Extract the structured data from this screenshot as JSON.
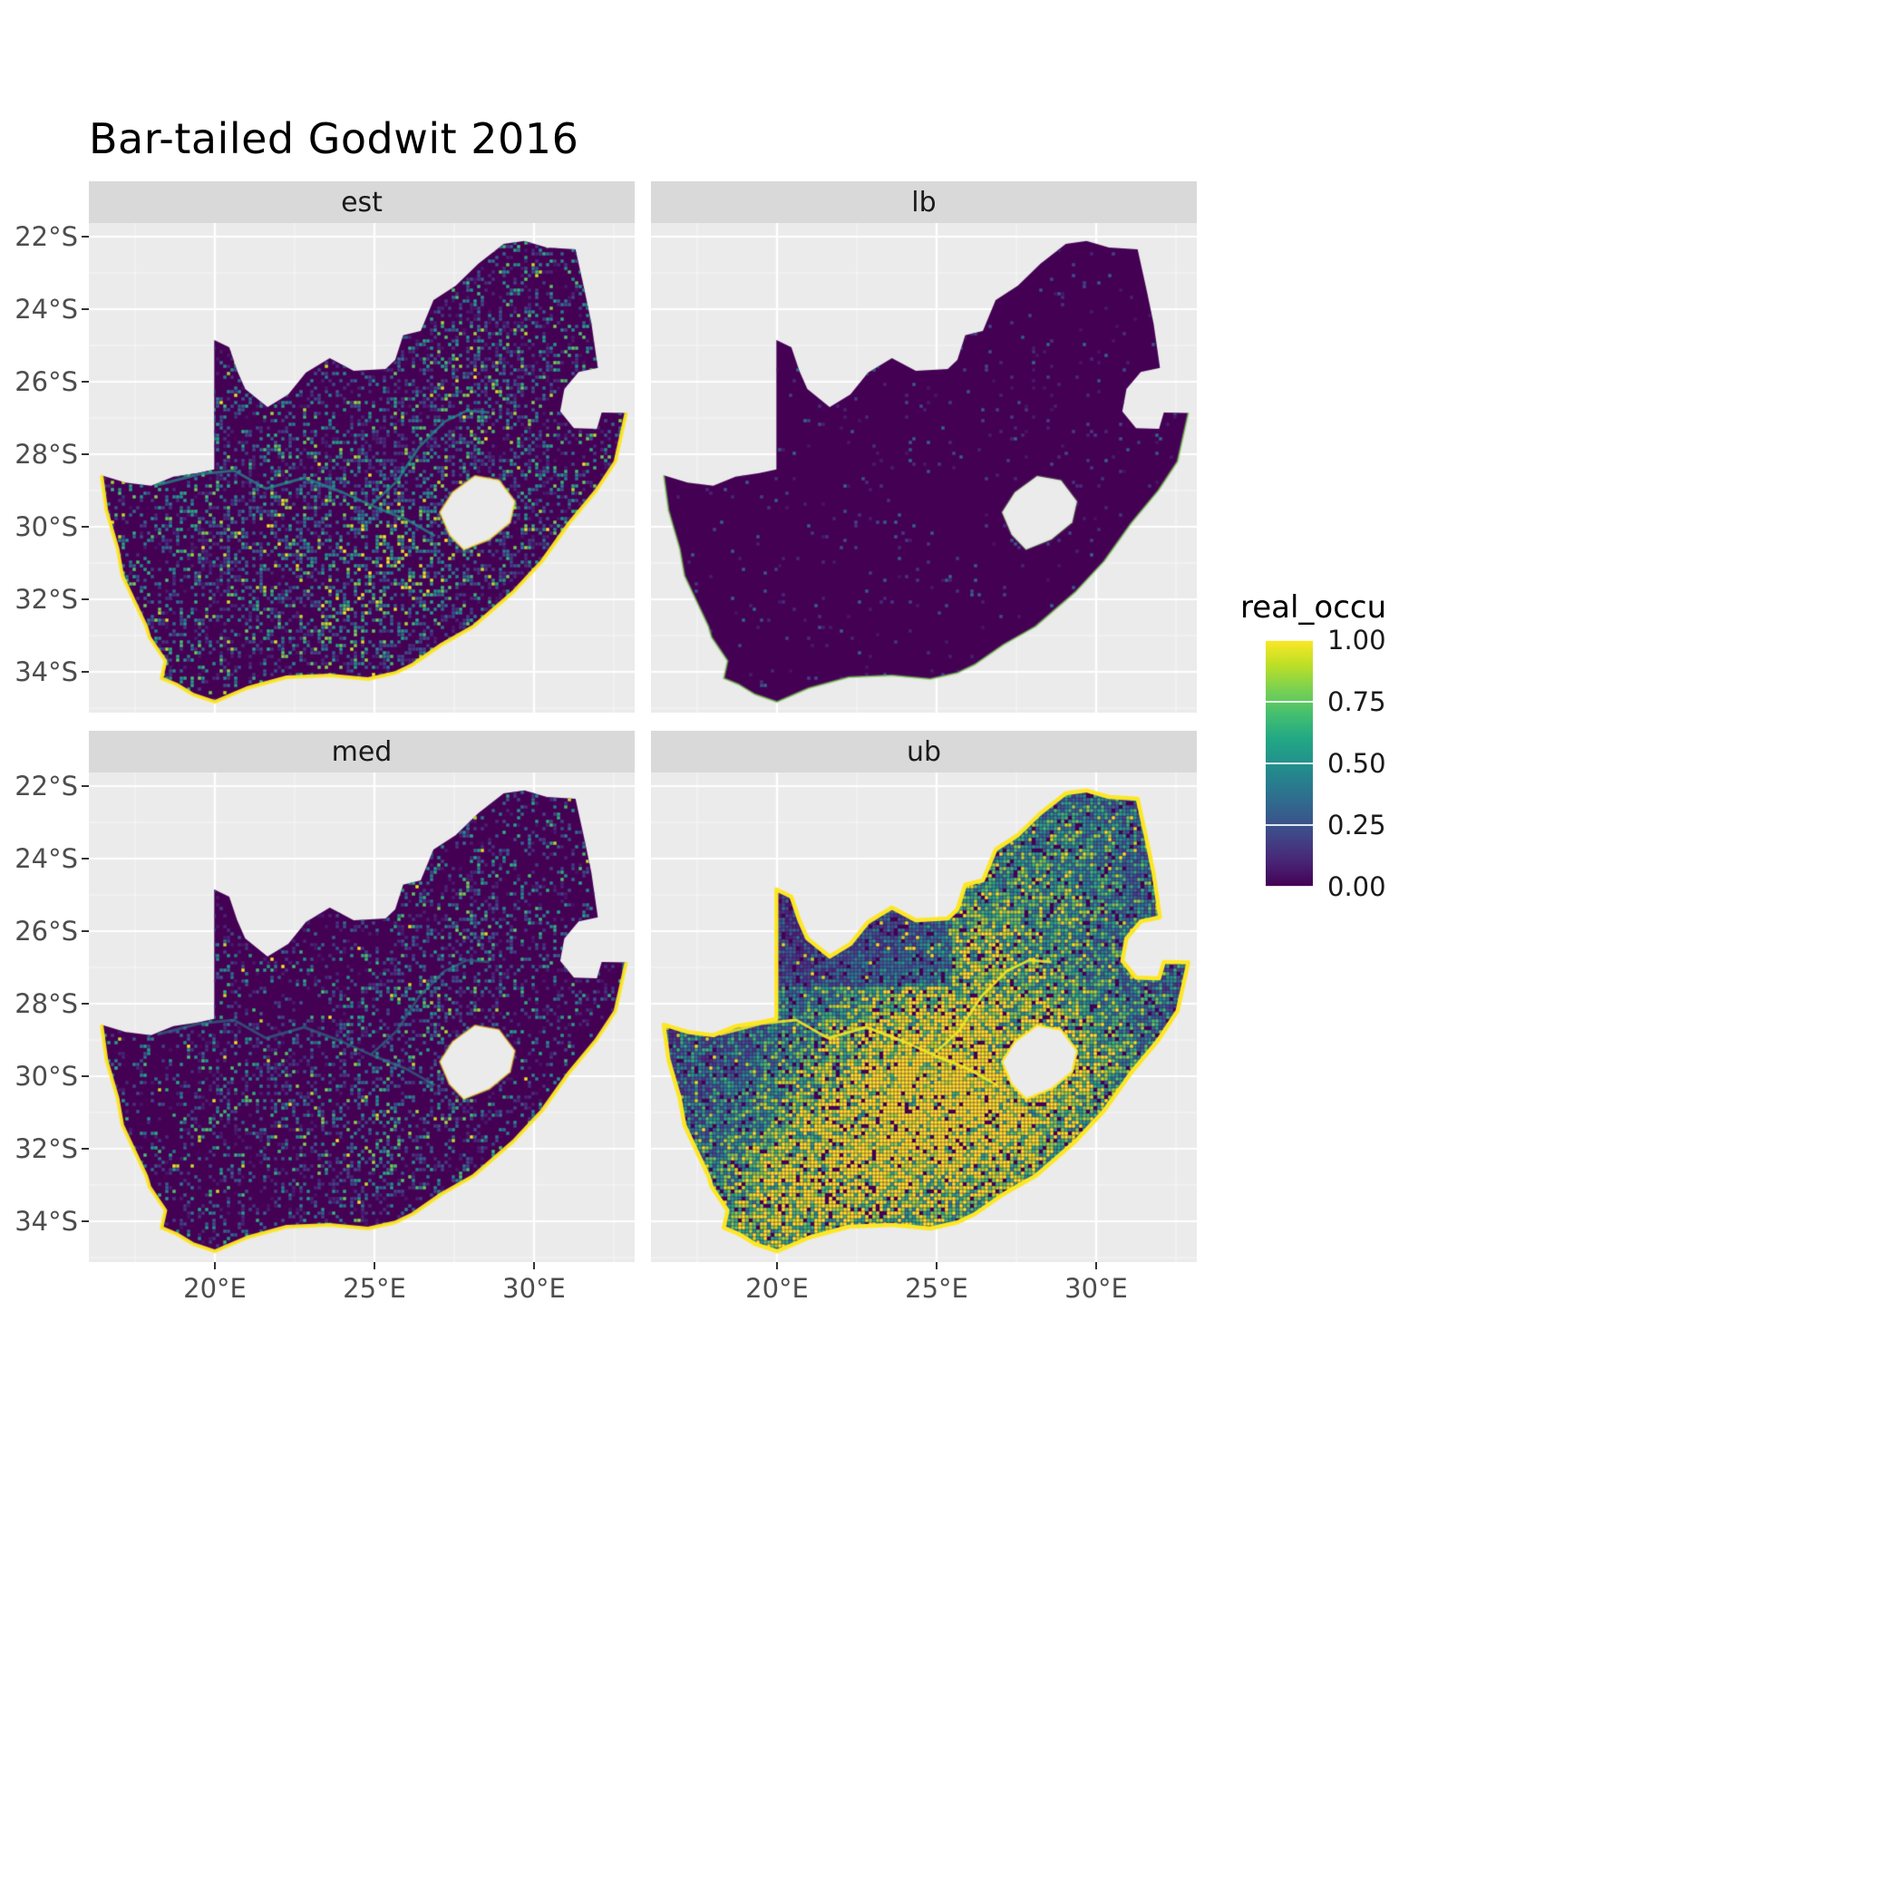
{
  "theme": {
    "panel_bg": "#EBEBEB",
    "strip_bg": "#D9D9D9",
    "grid_color": "#FFFFFF",
    "axis_text_color": "#4D4D4D",
    "tick_mark_color": "#333333",
    "title_color": "#000000",
    "strip_text_color": "#1A1A1A"
  },
  "chart_data": {
    "type": "heatmap",
    "title": "Bar-tailed Godwit 2016",
    "region": "South Africa",
    "legend_title": "real_occu",
    "legend_tick_labels": [
      "1.00",
      "0.75",
      "0.50",
      "0.25",
      "0.00"
    ],
    "legend_tick_values": [
      1.0,
      0.75,
      0.5,
      0.25,
      0.0
    ],
    "value_range": [
      0,
      1
    ],
    "colormap": {
      "name": "viridis",
      "stops": [
        "#440154",
        "#482475",
        "#414487",
        "#355F8D",
        "#2A788E",
        "#21918C",
        "#22A884",
        "#44BF70",
        "#7AD151",
        "#BDDF26",
        "#FDE725"
      ]
    },
    "x_axis": {
      "ticks": [
        {
          "lon": 20,
          "label": "20°E"
        },
        {
          "lon": 25,
          "label": "25°E"
        },
        {
          "lon": 30,
          "label": "30°E"
        }
      ],
      "minor": [
        17.5,
        22.5,
        27.5,
        32.5
      ],
      "range": [
        16.05,
        33.15
      ]
    },
    "y_axis": {
      "ticks": [
        {
          "lat": -22,
          "label": "22°S"
        },
        {
          "lat": -24,
          "label": "24°S"
        },
        {
          "lat": -26,
          "label": "26°S"
        },
        {
          "lat": -28,
          "label": "28°S"
        },
        {
          "lat": -30,
          "label": "30°S"
        },
        {
          "lat": -32,
          "label": "32°S"
        },
        {
          "lat": -34,
          "label": "34°S"
        }
      ],
      "minor": [
        -23,
        -25,
        -27,
        -29,
        -31,
        -33,
        -35
      ],
      "range": [
        -35.1,
        -21.63
      ]
    },
    "facets": [
      {
        "label": "est",
        "seed": 101,
        "density": 0.42,
        "pow": 2.4,
        "scale": 0.8,
        "base": 0,
        "bright": 0.012,
        "blobs": [
          [
            25.9,
            -30.6,
            2.6,
            0.28
          ],
          [
            28.1,
            -26.1,
            1.7,
            0.22
          ],
          [
            21.3,
            -30.4,
            1.8,
            0.16
          ],
          [
            24.0,
            -32.0,
            2.2,
            0.12
          ],
          [
            29.8,
            -30.2,
            1.5,
            0.1
          ]
        ],
        "damp": [
          25.5,
          -26.5,
          0.6
        ],
        "outline": "coast",
        "coast_color": "#FDE725",
        "coast_alpha": 0.95,
        "coast_width": 4,
        "river_value": 0.5,
        "river_alpha": 0.7,
        "hole_stroke": "#FDE725",
        "hole_alpha": 0.55
      },
      {
        "label": "lb",
        "seed": 202,
        "density": 0.1,
        "pow": 5,
        "scale": 0.35,
        "base": 0,
        "bright": 0.0015,
        "blobs": [
          [
            28.1,
            -26.1,
            1.2,
            0.06
          ]
        ],
        "damp": null,
        "outline": "coast",
        "coast_color": "#7AD151",
        "coast_alpha": 0.55,
        "coast_width": 2.5,
        "river_value": 0.4,
        "river_alpha": 0,
        "hole_stroke": "#7AD151",
        "hole_alpha": 0.2
      },
      {
        "label": "med",
        "seed": 303,
        "density": 0.34,
        "pow": 2.8,
        "scale": 0.72,
        "base": 0,
        "bright": 0.01,
        "blobs": [
          [
            25.9,
            -30.6,
            2.4,
            0.2
          ],
          [
            28.1,
            -26.1,
            1.6,
            0.18
          ],
          [
            21.3,
            -30.4,
            1.7,
            0.12
          ],
          [
            26.3,
            -27.6,
            1.0,
            0.3
          ],
          [
            24.0,
            -32.2,
            2.0,
            0.1
          ]
        ],
        "damp": [
          25.5,
          -26.5,
          0.6
        ],
        "outline": "coast",
        "coast_color": "#FDE725",
        "coast_alpha": 0.95,
        "coast_width": 4,
        "river_value": 0.45,
        "river_alpha": 0.55,
        "hole_stroke": "#FDE725",
        "hole_alpha": 0.45
      },
      {
        "label": "ub",
        "seed": 404,
        "density": 0.92,
        "pow": 1.6,
        "scale": 0.55,
        "base": 0.12,
        "bright": 0.03,
        "blobs": [
          [
            24.8,
            -31.6,
            3.6,
            0.55
          ],
          [
            26.8,
            -30.3,
            3.0,
            0.5
          ],
          [
            21.4,
            -32.6,
            2.6,
            0.45
          ],
          [
            19.5,
            -33.8,
            1.8,
            0.35
          ],
          [
            26.2,
            -26.3,
            2.2,
            0.3
          ],
          [
            29.2,
            -24.3,
            2.6,
            0.28
          ],
          [
            29.8,
            -29.3,
            2.0,
            0.3
          ],
          [
            23.0,
            -28.8,
            2.5,
            0.25
          ]
        ],
        "damp": [
          25.5,
          -27.5,
          0.55
        ],
        "outline": "full",
        "coast_color": "#FDE725",
        "coast_alpha": 1,
        "coast_width": 4.5,
        "river_value": 0.98,
        "river_alpha": 0.9,
        "hole_stroke": "#FDE725",
        "hole_alpha": 0.9
      }
    ],
    "map_outline": [
      [
        16.45,
        -28.58
      ],
      [
        17.2,
        -28.78
      ],
      [
        18.0,
        -28.87
      ],
      [
        18.7,
        -28.62
      ],
      [
        19.45,
        -28.52
      ],
      [
        19.98,
        -28.42
      ],
      [
        19.98,
        -24.85
      ],
      [
        20.45,
        -25.05
      ],
      [
        20.7,
        -25.7
      ],
      [
        20.95,
        -26.2
      ],
      [
        21.65,
        -26.7
      ],
      [
        22.3,
        -26.35
      ],
      [
        22.85,
        -25.75
      ],
      [
        23.6,
        -25.35
      ],
      [
        24.35,
        -25.7
      ],
      [
        25.35,
        -25.65
      ],
      [
        25.65,
        -25.4
      ],
      [
        25.9,
        -24.72
      ],
      [
        26.45,
        -24.6
      ],
      [
        26.85,
        -23.75
      ],
      [
        27.55,
        -23.35
      ],
      [
        28.25,
        -22.75
      ],
      [
        29.05,
        -22.2
      ],
      [
        29.7,
        -22.12
      ],
      [
        30.4,
        -22.3
      ],
      [
        31.3,
        -22.35
      ],
      [
        31.6,
        -23.55
      ],
      [
        31.8,
        -24.4
      ],
      [
        32.0,
        -25.62
      ],
      [
        31.4,
        -25.73
      ],
      [
        30.95,
        -26.2
      ],
      [
        30.82,
        -26.82
      ],
      [
        31.25,
        -27.28
      ],
      [
        31.97,
        -27.3
      ],
      [
        32.12,
        -26.85
      ],
      [
        32.89,
        -26.86
      ],
      [
        32.55,
        -28.2
      ],
      [
        31.95,
        -29.0
      ],
      [
        31.1,
        -29.9
      ],
      [
        30.25,
        -30.95
      ],
      [
        29.35,
        -31.8
      ],
      [
        28.1,
        -32.75
      ],
      [
        27.1,
        -33.25
      ],
      [
        26.2,
        -33.8
      ],
      [
        25.65,
        -34.03
      ],
      [
        24.8,
        -34.2
      ],
      [
        23.6,
        -34.1
      ],
      [
        22.25,
        -34.15
      ],
      [
        21.0,
        -34.45
      ],
      [
        20.0,
        -34.83
      ],
      [
        19.3,
        -34.62
      ],
      [
        18.8,
        -34.35
      ],
      [
        18.33,
        -34.18
      ],
      [
        18.45,
        -33.7
      ],
      [
        17.95,
        -33.05
      ],
      [
        17.85,
        -32.75
      ],
      [
        17.1,
        -31.35
      ],
      [
        16.95,
        -30.6
      ],
      [
        16.6,
        -29.55
      ]
    ],
    "coastline": [
      [
        32.89,
        -26.86
      ],
      [
        32.55,
        -28.2
      ],
      [
        31.95,
        -29.0
      ],
      [
        31.1,
        -29.9
      ],
      [
        30.25,
        -30.95
      ],
      [
        29.35,
        -31.8
      ],
      [
        28.1,
        -32.75
      ],
      [
        27.1,
        -33.25
      ],
      [
        26.2,
        -33.8
      ],
      [
        25.65,
        -34.03
      ],
      [
        24.8,
        -34.2
      ],
      [
        23.6,
        -34.1
      ],
      [
        22.25,
        -34.15
      ],
      [
        21.0,
        -34.45
      ],
      [
        20.0,
        -34.83
      ],
      [
        19.3,
        -34.62
      ],
      [
        18.8,
        -34.35
      ],
      [
        18.33,
        -34.18
      ],
      [
        18.45,
        -33.7
      ],
      [
        17.95,
        -33.05
      ],
      [
        17.85,
        -32.75
      ],
      [
        17.1,
        -31.35
      ],
      [
        16.95,
        -30.6
      ],
      [
        16.6,
        -29.55
      ],
      [
        16.45,
        -28.58
      ]
    ],
    "lesotho_hole": [
      [
        27.05,
        -29.6
      ],
      [
        27.45,
        -29.05
      ],
      [
        28.15,
        -28.6
      ],
      [
        28.9,
        -28.72
      ],
      [
        29.4,
        -29.3
      ],
      [
        29.25,
        -29.88
      ],
      [
        28.6,
        -30.35
      ],
      [
        27.8,
        -30.63
      ],
      [
        27.35,
        -30.22
      ]
    ],
    "rivers": [
      [
        [
          18.2,
          -28.85
        ],
        [
          19.5,
          -28.55
        ],
        [
          20.6,
          -28.45
        ],
        [
          21.6,
          -28.95
        ],
        [
          22.8,
          -28.65
        ],
        [
          24.0,
          -29.05
        ],
        [
          25.0,
          -29.45
        ],
        [
          26.0,
          -29.8
        ],
        [
          26.9,
          -30.25
        ]
      ],
      [
        [
          24.9,
          -29.4
        ],
        [
          25.7,
          -28.75
        ],
        [
          26.4,
          -27.8
        ],
        [
          27.2,
          -27.1
        ],
        [
          27.9,
          -26.8
        ],
        [
          28.6,
          -26.85
        ]
      ]
    ]
  }
}
